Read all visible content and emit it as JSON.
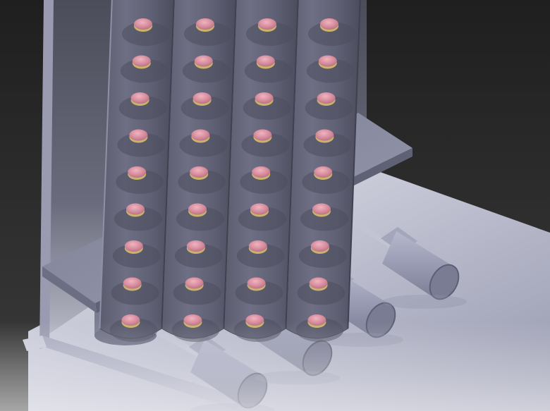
{
  "view": {
    "background_top": "#262626",
    "background_bottom": "#3a3a3a",
    "floor_light": "#e4e4ee",
    "floor_dark": "#9ea0b6"
  },
  "model": {
    "tube_columns": 4,
    "discs_per_tube": 9,
    "actuator_count": 4,
    "body_color": "#8c8ea6",
    "disc_color": "#d48a9a",
    "disc_rim_color": "#c9b46a"
  }
}
